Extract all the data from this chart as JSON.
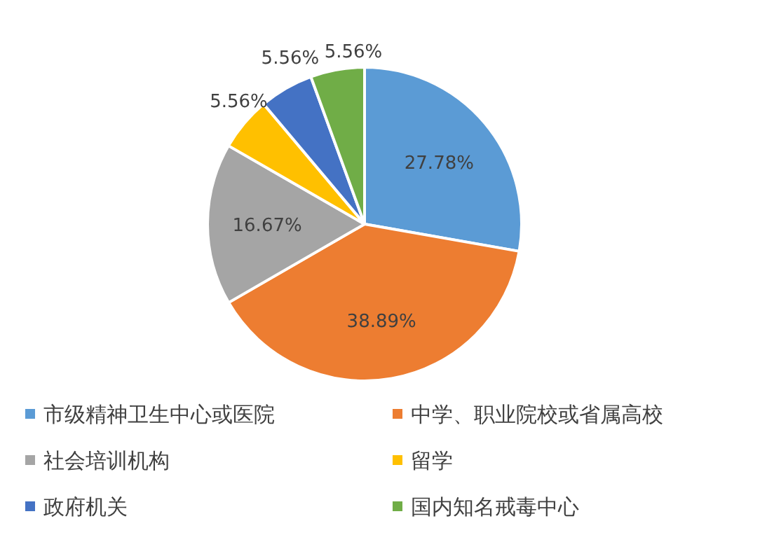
{
  "chart_data": {
    "type": "pie",
    "categories": [
      "市级精神卫生中心或医院",
      "中学、职业院校或省属高校",
      "社会培训机构",
      "留学",
      "政府机关",
      "国内知名戒毒中心"
    ],
    "values": [
      27.78,
      38.89,
      16.67,
      5.56,
      5.56,
      5.56
    ],
    "colors": [
      "#5b9bd5",
      "#ed7d31",
      "#a5a5a5",
      "#ffc000",
      "#4472c4",
      "#70ad47"
    ],
    "value_labels": [
      "27.78%",
      "38.89%",
      "16.67%",
      "5.56%",
      "5.56%",
      "5.56%"
    ],
    "legend": "bottom"
  }
}
